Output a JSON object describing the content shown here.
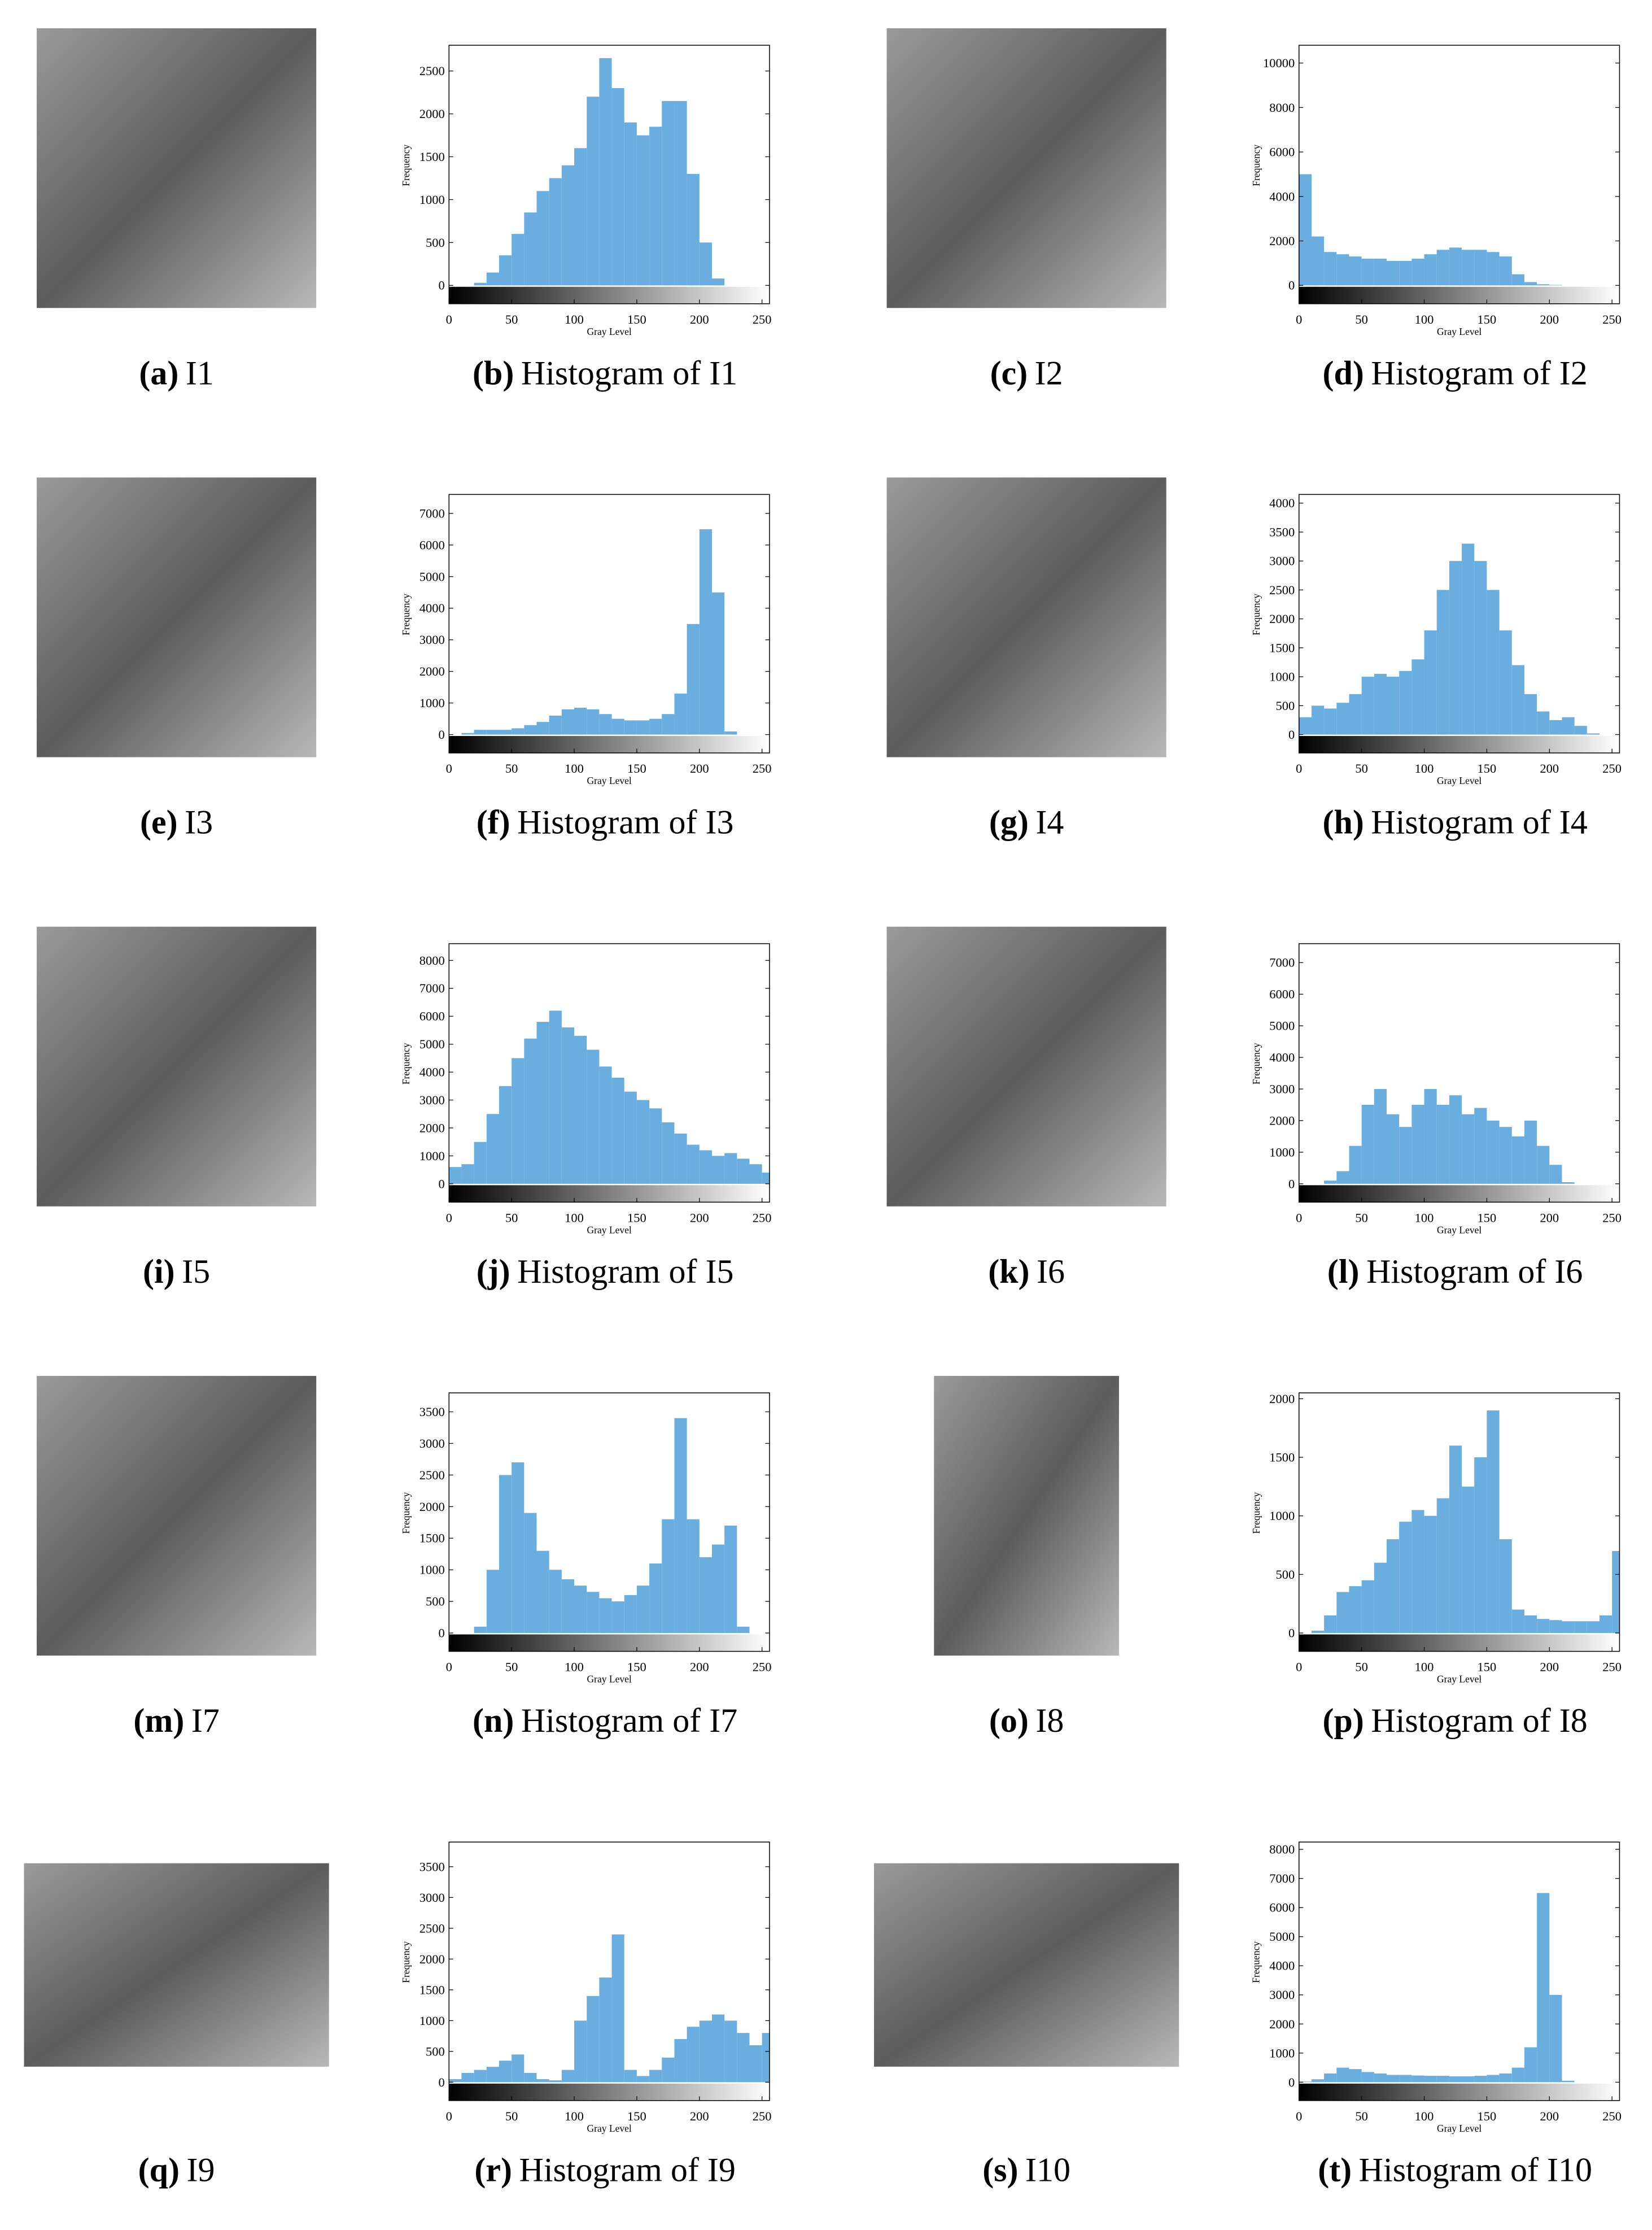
{
  "images": [
    {
      "label": "(a)",
      "caption": "I1"
    },
    {
      "label": "(c)",
      "caption": "I2"
    },
    {
      "label": "(e)",
      "caption": "I3"
    },
    {
      "label": "(g)",
      "caption": "I4"
    },
    {
      "label": "(i)",
      "caption": "I5"
    },
    {
      "label": "(k)",
      "caption": "I6"
    },
    {
      "label": "(m)",
      "caption": "I7"
    },
    {
      "label": "(o)",
      "caption": "I8"
    },
    {
      "label": "(q)",
      "caption": "I9"
    },
    {
      "label": "(s)",
      "caption": "I10"
    }
  ],
  "chart_data": [
    {
      "type": "histogram",
      "label": "(b)",
      "title": "Histogram of I1",
      "xlabel": "Gray Level",
      "ylabel": "Frequency",
      "color": "#6aaee0",
      "xlim": [
        0,
        256
      ],
      "xticks": [
        0,
        50,
        100,
        150,
        200,
        250
      ],
      "ylim": [
        0,
        2800
      ],
      "yticks": [
        0,
        500,
        1000,
        1500,
        2000,
        2500
      ],
      "bins": [
        0,
        10,
        20,
        30,
        40,
        50,
        60,
        70,
        80,
        90,
        100,
        110,
        120,
        130,
        140,
        150,
        160,
        170,
        180,
        190,
        200,
        210,
        220,
        230,
        240,
        250,
        256
      ],
      "values": [
        0,
        0,
        30,
        150,
        350,
        600,
        850,
        1100,
        1250,
        1400,
        1600,
        2200,
        2650,
        2300,
        1900,
        1750,
        1850,
        2150,
        2150,
        1300,
        500,
        80,
        0,
        0,
        0,
        0
      ]
    },
    {
      "type": "histogram",
      "label": "(d)",
      "title": "Histogram of I2",
      "xlabel": "Gray Level",
      "ylabel": "Frequency",
      "color": "#6aaee0",
      "xlim": [
        0,
        256
      ],
      "xticks": [
        0,
        50,
        100,
        150,
        200,
        250
      ],
      "ylim": [
        0,
        10800
      ],
      "yticks": [
        0,
        2000,
        4000,
        6000,
        8000,
        10000
      ],
      "bins": [
        0,
        10,
        20,
        30,
        40,
        50,
        60,
        70,
        80,
        90,
        100,
        110,
        120,
        130,
        140,
        150,
        160,
        170,
        180,
        190,
        200,
        210,
        220,
        230,
        240,
        250,
        256
      ],
      "values": [
        5000,
        2200,
        1500,
        1400,
        1300,
        1200,
        1200,
        1100,
        1100,
        1200,
        1400,
        1600,
        1700,
        1600,
        1600,
        1500,
        1300,
        500,
        150,
        50,
        20,
        0,
        0,
        0,
        0,
        0
      ]
    },
    {
      "type": "histogram",
      "label": "(f)",
      "title": "Histogram of I3",
      "xlabel": "Gray Level",
      "ylabel": "Frequency",
      "color": "#6aaee0",
      "xlim": [
        0,
        256
      ],
      "xticks": [
        0,
        50,
        100,
        150,
        200,
        250
      ],
      "ylim": [
        0,
        7600
      ],
      "yticks": [
        0,
        1000,
        2000,
        3000,
        4000,
        5000,
        6000,
        7000
      ],
      "bins": [
        0,
        10,
        20,
        30,
        40,
        50,
        60,
        70,
        80,
        90,
        100,
        110,
        120,
        130,
        140,
        150,
        160,
        170,
        180,
        190,
        200,
        210,
        220,
        230,
        240,
        250,
        256
      ],
      "values": [
        0,
        50,
        150,
        150,
        150,
        200,
        300,
        400,
        600,
        800,
        850,
        800,
        650,
        500,
        450,
        450,
        500,
        650,
        1300,
        3500,
        6500,
        4500,
        100,
        0,
        0,
        0
      ]
    },
    {
      "type": "histogram",
      "label": "(h)",
      "title": "Histogram of I4",
      "xlabel": "Gray Level",
      "ylabel": "Frequency",
      "color": "#6aaee0",
      "xlim": [
        0,
        256
      ],
      "xticks": [
        0,
        50,
        100,
        150,
        200,
        250
      ],
      "ylim": [
        0,
        4150
      ],
      "yticks": [
        0,
        500,
        1000,
        1500,
        2000,
        2500,
        3000,
        3500,
        4000
      ],
      "bins": [
        0,
        10,
        20,
        30,
        40,
        50,
        60,
        70,
        80,
        90,
        100,
        110,
        120,
        130,
        140,
        150,
        160,
        170,
        180,
        190,
        200,
        210,
        220,
        230,
        240,
        250,
        256
      ],
      "values": [
        300,
        500,
        450,
        550,
        700,
        1000,
        1050,
        1000,
        1100,
        1300,
        1800,
        2500,
        3000,
        3300,
        3000,
        2500,
        1800,
        1200,
        700,
        400,
        250,
        300,
        150,
        20,
        0,
        0
      ]
    },
    {
      "type": "histogram",
      "label": "(j)",
      "title": "Histogram of I5",
      "xlabel": "Gray Level",
      "ylabel": "Frequency",
      "color": "#6aaee0",
      "xlim": [
        0,
        256
      ],
      "xticks": [
        0,
        50,
        100,
        150,
        200,
        250
      ],
      "ylim": [
        0,
        8600
      ],
      "yticks": [
        0,
        1000,
        2000,
        3000,
        4000,
        5000,
        6000,
        7000,
        8000
      ],
      "bins": [
        0,
        10,
        20,
        30,
        40,
        50,
        60,
        70,
        80,
        90,
        100,
        110,
        120,
        130,
        140,
        150,
        160,
        170,
        180,
        190,
        200,
        210,
        220,
        230,
        240,
        250,
        256
      ],
      "values": [
        600,
        700,
        1500,
        2500,
        3500,
        4500,
        5200,
        5800,
        6200,
        5600,
        5300,
        4800,
        4200,
        3800,
        3300,
        3000,
        2700,
        2200,
        1800,
        1400,
        1200,
        1000,
        1100,
        900,
        700,
        400
      ]
    },
    {
      "type": "histogram",
      "label": "(l)",
      "title": "Histogram of I6",
      "xlabel": "Gray Level",
      "ylabel": "Frequency",
      "color": "#6aaee0",
      "xlim": [
        0,
        256
      ],
      "xticks": [
        0,
        50,
        100,
        150,
        200,
        250
      ],
      "ylim": [
        0,
        7600
      ],
      "yticks": [
        0,
        1000,
        2000,
        3000,
        4000,
        5000,
        6000,
        7000
      ],
      "bins": [
        0,
        10,
        20,
        30,
        40,
        50,
        60,
        70,
        80,
        90,
        100,
        110,
        120,
        130,
        140,
        150,
        160,
        170,
        180,
        190,
        200,
        210,
        220,
        230,
        240,
        250,
        256
      ],
      "values": [
        0,
        0,
        100,
        400,
        1200,
        2500,
        3000,
        2200,
        1800,
        2500,
        3000,
        2500,
        2800,
        2200,
        2400,
        2000,
        1800,
        1500,
        2000,
        1200,
        600,
        50,
        0,
        0,
        0,
        0
      ]
    },
    {
      "type": "histogram",
      "label": "(n)",
      "title": "Histogram of I7",
      "xlabel": "Gray Level",
      "ylabel": "Frequency",
      "color": "#6aaee0",
      "xlim": [
        0,
        256
      ],
      "xticks": [
        0,
        50,
        100,
        150,
        200,
        250
      ],
      "ylim": [
        0,
        3800
      ],
      "yticks": [
        0,
        500,
        1000,
        1500,
        2000,
        2500,
        3000,
        3500
      ],
      "bins": [
        0,
        10,
        20,
        30,
        40,
        50,
        60,
        70,
        80,
        90,
        100,
        110,
        120,
        130,
        140,
        150,
        160,
        170,
        180,
        190,
        200,
        210,
        220,
        230,
        240,
        250,
        256
      ],
      "values": [
        0,
        0,
        100,
        1000,
        2500,
        2700,
        1900,
        1300,
        1000,
        850,
        750,
        650,
        550,
        500,
        600,
        750,
        1100,
        1800,
        3400,
        1800,
        1200,
        1400,
        1700,
        100,
        0,
        0
      ]
    },
    {
      "type": "histogram",
      "label": "(p)",
      "title": "Histogram of I8",
      "xlabel": "Gray Level",
      "ylabel": "Frequency",
      "color": "#6aaee0",
      "xlim": [
        0,
        256
      ],
      "xticks": [
        0,
        50,
        100,
        150,
        200,
        250
      ],
      "ylim": [
        0,
        2050
      ],
      "yticks": [
        0,
        500,
        1000,
        1500,
        2000
      ],
      "bins": [
        0,
        10,
        20,
        30,
        40,
        50,
        60,
        70,
        80,
        90,
        100,
        110,
        120,
        130,
        140,
        150,
        160,
        170,
        180,
        190,
        200,
        210,
        220,
        230,
        240,
        250,
        256
      ],
      "values": [
        0,
        20,
        150,
        350,
        400,
        450,
        600,
        800,
        950,
        1050,
        1000,
        1150,
        1600,
        1250,
        1500,
        1900,
        800,
        200,
        150,
        120,
        110,
        100,
        100,
        100,
        150,
        700
      ]
    },
    {
      "type": "histogram",
      "label": "(r)",
      "title": "Histogram of I9",
      "xlabel": "Gray Level",
      "ylabel": "Frequency",
      "color": "#6aaee0",
      "xlim": [
        0,
        256
      ],
      "xticks": [
        0,
        50,
        100,
        150,
        200,
        250
      ],
      "ylim": [
        0,
        3900
      ],
      "yticks": [
        0,
        500,
        1000,
        1500,
        2000,
        2500,
        3000,
        3500
      ],
      "bins": [
        0,
        10,
        20,
        30,
        40,
        50,
        60,
        70,
        80,
        90,
        100,
        110,
        120,
        130,
        140,
        150,
        160,
        170,
        180,
        190,
        200,
        210,
        220,
        230,
        240,
        250,
        256
      ],
      "values": [
        50,
        150,
        200,
        250,
        350,
        450,
        150,
        50,
        30,
        200,
        1000,
        1400,
        1700,
        2400,
        200,
        100,
        200,
        400,
        700,
        900,
        1000,
        1100,
        1000,
        800,
        600,
        800
      ]
    },
    {
      "type": "histogram",
      "label": "(t)",
      "title": "Histogram of I10",
      "xlabel": "Gray Level",
      "ylabel": "Frequency",
      "color": "#6aaee0",
      "xlim": [
        0,
        256
      ],
      "xticks": [
        0,
        50,
        100,
        150,
        200,
        250
      ],
      "ylim": [
        0,
        8250
      ],
      "yticks": [
        0,
        1000,
        2000,
        3000,
        4000,
        5000,
        6000,
        7000,
        8000
      ],
      "bins": [
        0,
        10,
        20,
        30,
        40,
        50,
        60,
        70,
        80,
        90,
        100,
        110,
        120,
        130,
        140,
        150,
        160,
        170,
        180,
        190,
        200,
        210,
        220,
        230,
        240,
        250,
        256
      ],
      "values": [
        20,
        100,
        300,
        500,
        450,
        350,
        300,
        250,
        250,
        230,
        220,
        220,
        200,
        200,
        220,
        250,
        300,
        500,
        1200,
        6500,
        3000,
        50,
        0,
        0,
        0,
        0
      ]
    }
  ]
}
